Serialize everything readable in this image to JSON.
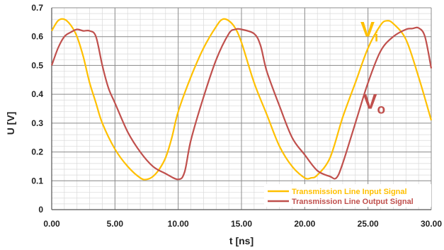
{
  "chart_data": {
    "type": "line",
    "xlabel": "t [ns]",
    "ylabel": "U [V]",
    "xlim": [
      0,
      30
    ],
    "ylim": [
      0,
      0.7
    ],
    "x_ticks": [
      "0.00",
      "5.00",
      "10.00",
      "15.00",
      "20.00",
      "25.00",
      "30.00"
    ],
    "y_ticks": [
      "0",
      "0.1",
      "0.2",
      "0.3",
      "0.4",
      "0.5",
      "0.6",
      "0.7"
    ],
    "grid": true,
    "legend_position": "bottom-right",
    "series": [
      {
        "name": "Transmission Line Input Signal",
        "color": "#FFC000",
        "x": [
          0,
          0.5,
          1,
          1.5,
          2,
          2.5,
          3,
          3.5,
          4,
          5,
          6,
          7,
          7.5,
          8,
          8.5,
          9,
          9.5,
          10,
          11,
          12,
          13,
          13.5,
          14,
          14.5,
          15,
          16,
          17,
          18,
          19,
          20,
          20.5,
          21,
          22,
          23,
          24,
          25,
          26,
          26.5,
          27,
          28,
          29,
          30
        ],
        "y": [
          0.62,
          0.655,
          0.66,
          0.64,
          0.6,
          0.53,
          0.44,
          0.37,
          0.3,
          0.21,
          0.15,
          0.11,
          0.105,
          0.115,
          0.14,
          0.18,
          0.25,
          0.34,
          0.46,
          0.56,
          0.635,
          0.66,
          0.655,
          0.63,
          0.58,
          0.44,
          0.33,
          0.22,
          0.15,
          0.11,
          0.11,
          0.12,
          0.18,
          0.32,
          0.44,
          0.56,
          0.64,
          0.655,
          0.645,
          0.59,
          0.46,
          0.31
        ]
      },
      {
        "name": "Transmission Line Output Signal",
        "color": "#C0504D",
        "x": [
          0,
          0.5,
          1,
          1.5,
          2,
          2.5,
          3,
          3.5,
          4,
          4.5,
          5,
          6,
          7,
          8,
          9,
          10,
          10.5,
          11,
          12,
          13,
          14,
          14.5,
          15,
          16,
          16.5,
          17,
          18,
          19,
          20,
          21,
          22,
          22.5,
          23,
          24,
          25,
          26,
          27,
          28,
          28.5,
          29,
          29.5,
          30
        ],
        "y": [
          0.5,
          0.56,
          0.6,
          0.615,
          0.625,
          0.62,
          0.62,
          0.6,
          0.5,
          0.42,
          0.37,
          0.27,
          0.2,
          0.15,
          0.125,
          0.105,
          0.13,
          0.24,
          0.39,
          0.52,
          0.61,
          0.625,
          0.625,
          0.61,
          0.57,
          0.48,
          0.36,
          0.25,
          0.19,
          0.135,
          0.115,
          0.11,
          0.16,
          0.3,
          0.44,
          0.55,
          0.6,
          0.625,
          0.628,
          0.63,
          0.6,
          0.49
        ]
      }
    ],
    "annotations": [
      {
        "text": "V",
        "sub": "i",
        "color": "#FFC000",
        "x": 24.4,
        "y": 0.6
      },
      {
        "text": "V",
        "sub": "o",
        "color": "#C0504D",
        "x": 24.6,
        "y": 0.35
      }
    ]
  }
}
